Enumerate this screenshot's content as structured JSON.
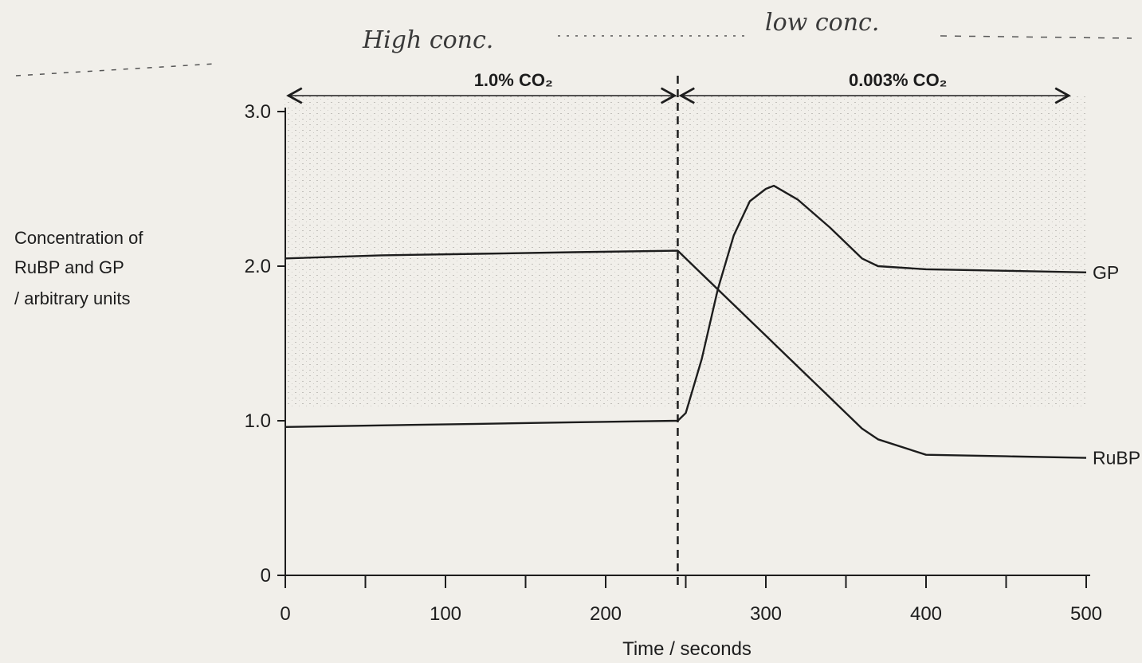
{
  "chart_data": {
    "type": "line",
    "xlabel": "Time / seconds",
    "ylabel_lines": [
      "Concentration of",
      "RuBP and GP",
      "/ arbitrary units"
    ],
    "xlim": [
      0,
      500
    ],
    "ylim": [
      0,
      3.0
    ],
    "x_ticks": [
      0,
      100,
      200,
      300,
      400,
      500
    ],
    "x_tick_labels": [
      "0",
      "100",
      "200",
      "300",
      "400",
      "500"
    ],
    "y_ticks": [
      0,
      1.0,
      2.0,
      3.0
    ],
    "y_tick_labels": [
      "0",
      "1.0",
      "2.0",
      "3.0"
    ],
    "grid": false,
    "divider_x": 245,
    "periods": [
      {
        "label": "1.0% CO₂",
        "x_range": [
          0,
          245
        ]
      },
      {
        "label": "0.003% CO₂",
        "x_range": [
          245,
          500
        ]
      }
    ],
    "annotations": [
      {
        "text": "High conc.",
        "handwritten": true
      },
      {
        "text": "low conc.",
        "handwritten": true
      }
    ],
    "series": [
      {
        "name": "RuBP",
        "x": [
          0,
          60,
          120,
          180,
          245,
          260,
          280,
          300,
          320,
          340,
          360,
          370,
          400,
          450,
          500
        ],
        "y": [
          2.05,
          2.07,
          2.08,
          2.09,
          2.1,
          1.95,
          1.75,
          1.55,
          1.35,
          1.15,
          0.95,
          0.88,
          0.78,
          0.77,
          0.76
        ]
      },
      {
        "name": "GP",
        "x": [
          0,
          60,
          120,
          180,
          245,
          250,
          260,
          270,
          280,
          290,
          300,
          305,
          320,
          340,
          360,
          370,
          400,
          450,
          500
        ],
        "y": [
          0.96,
          0.97,
          0.98,
          0.99,
          1.0,
          1.05,
          1.4,
          1.85,
          2.2,
          2.42,
          2.5,
          2.52,
          2.43,
          2.25,
          2.05,
          2.0,
          1.98,
          1.97,
          1.96
        ]
      }
    ]
  }
}
